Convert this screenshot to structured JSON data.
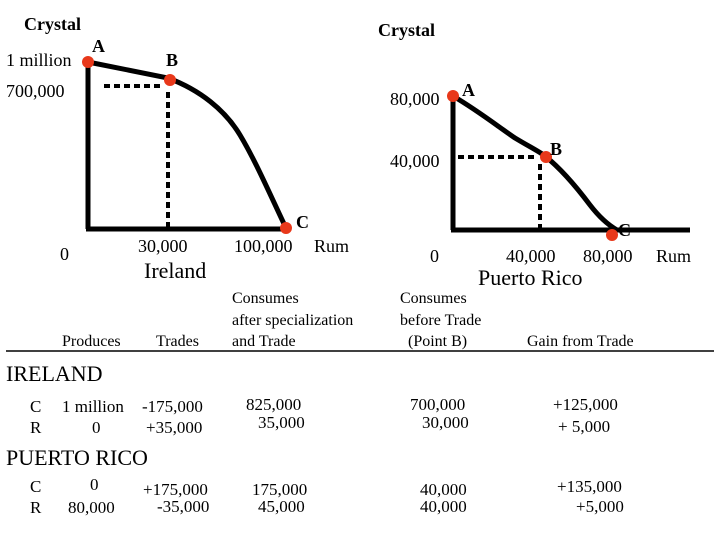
{
  "ireland_graph": {
    "y_axis_label": "Crystal",
    "x_axis_label": "Rum",
    "country": "Ireland",
    "origin": "0",
    "y_ticks": [
      "1 million",
      "700,000"
    ],
    "x_ticks": [
      "30,000",
      "100,000"
    ],
    "points": [
      {
        "label": "A",
        "crystal": 1000000,
        "rum": 0
      },
      {
        "label": "B",
        "crystal": 700000,
        "rum": 30000
      },
      {
        "label": "C",
        "crystal": 0,
        "rum": 100000
      }
    ]
  },
  "puerto_rico_graph": {
    "y_axis_label": "Crystal",
    "x_axis_label": "Rum",
    "country": "Puerto Rico",
    "origin": "0",
    "y_ticks": [
      "80,000",
      "40,000"
    ],
    "x_ticks": [
      "40,000",
      "80,000"
    ],
    "points": [
      {
        "label": "A",
        "crystal": 80000,
        "rum": 0
      },
      {
        "label": "B",
        "crystal": 40000,
        "rum": 40000
      },
      {
        "label": "C",
        "crystal": 0,
        "rum": 80000
      }
    ]
  },
  "colors": {
    "point": "#e8381a",
    "line": "#000000"
  },
  "table": {
    "headers": {
      "produces": "Produces",
      "trades": "Trades",
      "consumes_after": [
        "Consumes",
        "after specialization",
        "and Trade"
      ],
      "consumes_before": [
        "Consumes",
        "before Trade",
        "(Point B)"
      ],
      "gain": "Gain from Trade"
    },
    "sections": [
      {
        "name": "IRELAND",
        "rows": [
          {
            "good": "C",
            "produces": "1 million",
            "trades": "-175,000",
            "after": "825,000",
            "before": "700,000",
            "gain": "+125,000"
          },
          {
            "good": "R",
            "produces": "0",
            "trades": "+35,000",
            "after": "35,000",
            "before": "30,000",
            "gain": "+ 5,000"
          }
        ]
      },
      {
        "name": "PUERTO RICO",
        "rows": [
          {
            "good": "C",
            "produces": "0",
            "trades": "+175,000",
            "after": "175,000",
            "before": "40,000",
            "gain": "+135,000"
          },
          {
            "good": "R",
            "produces": "80,000",
            "trades": "-35,000",
            "after": "45,000",
            "before": "40,000",
            "gain": "+5,000"
          }
        ]
      }
    ]
  }
}
